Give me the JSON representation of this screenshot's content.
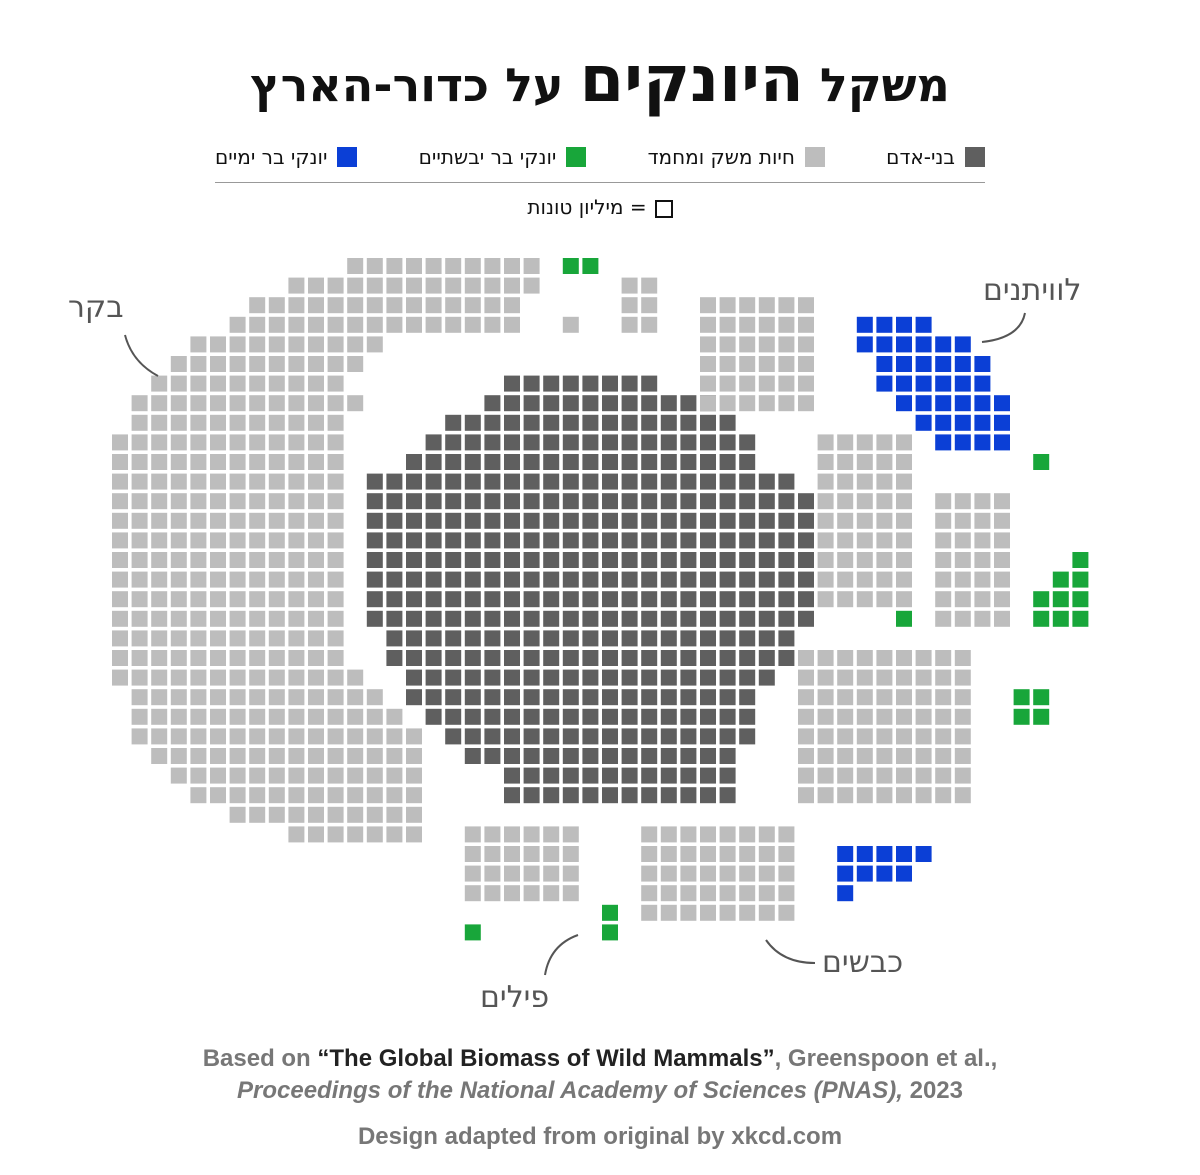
{
  "title": {
    "pre": "משקל",
    "bold": "היונקים",
    "post": "על כדור-הארץ"
  },
  "legend": [
    {
      "label": "בני-אדם",
      "color": "#5f5f5f"
    },
    {
      "label": "חיות משק ומחמד",
      "color": "#bdbdbd"
    },
    {
      "label": "יונקי בר יבשתיים",
      "color": "#18a63a"
    },
    {
      "label": "יונקי בר ימיים",
      "color": "#0b3fd6"
    }
  ],
  "unit_label": "= מיליון טונות",
  "annotations": {
    "cattle": "בקר",
    "whales": "לוויתנים",
    "sheep": "כבשים",
    "elephants": "פילים"
  },
  "source": {
    "prefix": "Based on",
    "paper": "“The Global Biomass of Wild Mammals”",
    "authors": ", Greenspoon et al.,",
    "journal": "Proceedings of the National Academy of Sciences (PNAS),",
    "year": "2023",
    "credit": "Design adapted from original by xkcd.com"
  },
  "chart_data": {
    "type": "waffle",
    "unit": "million tonnes per square",
    "series": [
      {
        "name": "בני-אדם",
        "approx_squares": 390
      },
      {
        "name": "חיות משק ומחמד",
        "approx_squares": 630
      },
      {
        "name": "יונקי בר יבשתיים",
        "approx_squares": 22
      },
      {
        "name": "יונקי בר ימיים",
        "approx_squares": 40
      }
    ]
  }
}
